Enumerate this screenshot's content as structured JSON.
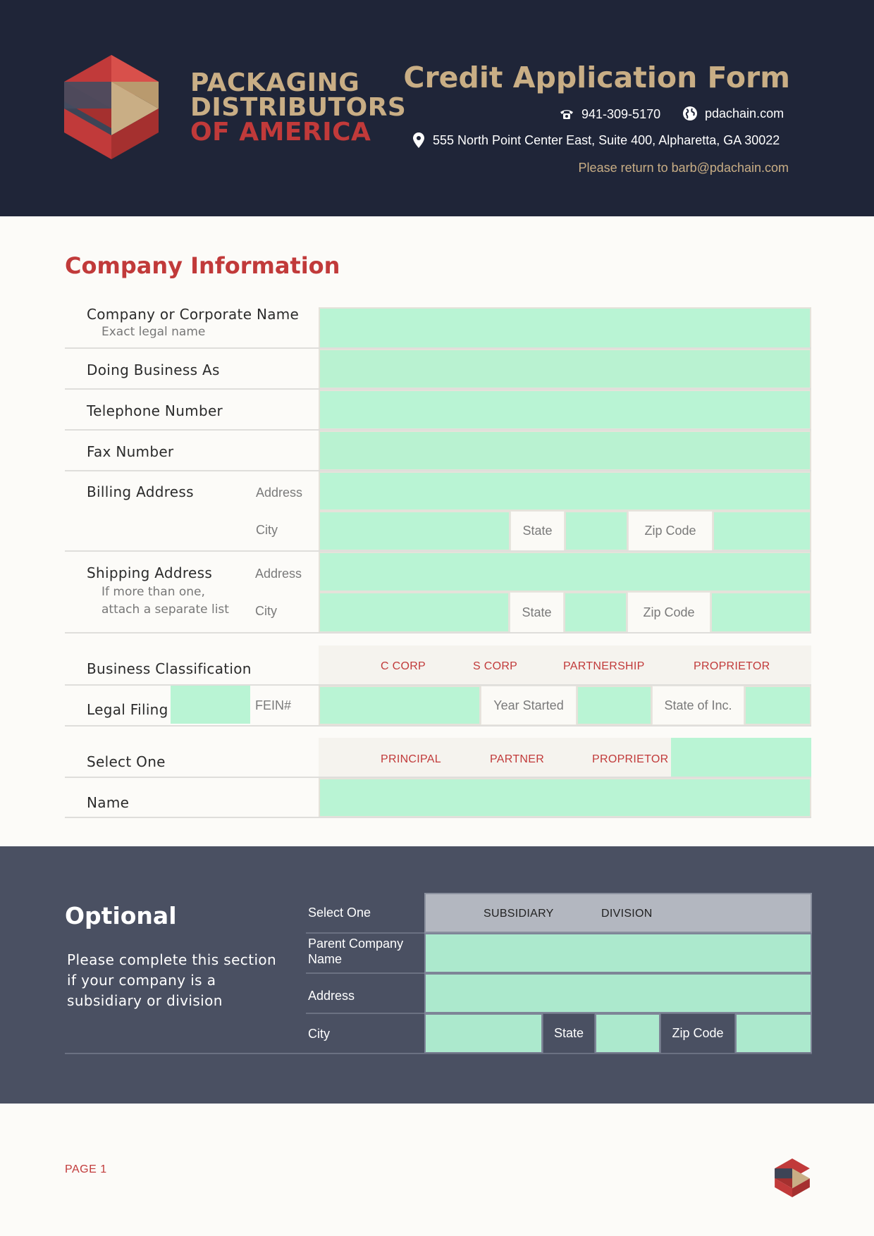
{
  "header": {
    "brand": {
      "line1": "PACKAGING",
      "line2": "DISTRIBUTORS",
      "line3": "OF AMERICA"
    },
    "title": "Credit Application Form",
    "phone": "941-309-5170",
    "website": "pdachain.com",
    "address": "555 North Point Center East, Suite 400, Alpharetta, GA 30022",
    "return_note": "Please return to barb@pdachain.com",
    "icons": {
      "phone": "phone-icon",
      "web": "globe-icon",
      "address": "location-pin-icon"
    }
  },
  "company": {
    "heading": "Company Information",
    "corporate_name": {
      "label": "Company or Corporate Name",
      "sub": "Exact legal name"
    },
    "dba": "Doing Business As",
    "telephone": "Telephone Number",
    "fax": "Fax Number",
    "billing": {
      "label": "Billing Address",
      "address": "Address",
      "city": "City",
      "state": "State",
      "zip": "Zip Code"
    },
    "shipping": {
      "label": "Shipping Address",
      "sub1": "If more than one,",
      "sub2": "attach a separate list",
      "address": "Address",
      "city": "City",
      "state": "State",
      "zip": "Zip Code"
    },
    "classification": {
      "label": "Business Classification",
      "options": [
        "C CORP",
        "S CORP",
        "PARTNERSHIP",
        "PROPRIETOR"
      ]
    },
    "legal": {
      "label": "Legal Filing",
      "fein": "FEIN#",
      "year_started": "Year Started",
      "state_inc": "State of Inc."
    },
    "select_one": {
      "label": "Select One",
      "options": [
        "PRINCIPAL",
        "PARTNER",
        "PROPRIETOR"
      ]
    },
    "name": "Name"
  },
  "optional": {
    "heading": "Optional",
    "description": "Please complete this section if your company is a subsidiary or division",
    "select_one": {
      "label": "Select One",
      "options": [
        "SUBSIDIARY",
        "DIVISION"
      ]
    },
    "parent_line1": "Parent Company",
    "parent_line2": "Name",
    "address": "Address",
    "city": "City",
    "state": "State",
    "zip": "Zip Code"
  },
  "footer": {
    "page": "PAGE 1"
  },
  "colors": {
    "navy": "#1f2538",
    "gold": "#c9ae85",
    "red": "#c13a3a",
    "field_green": "#b9f4d4",
    "slate": "#4a5062"
  }
}
